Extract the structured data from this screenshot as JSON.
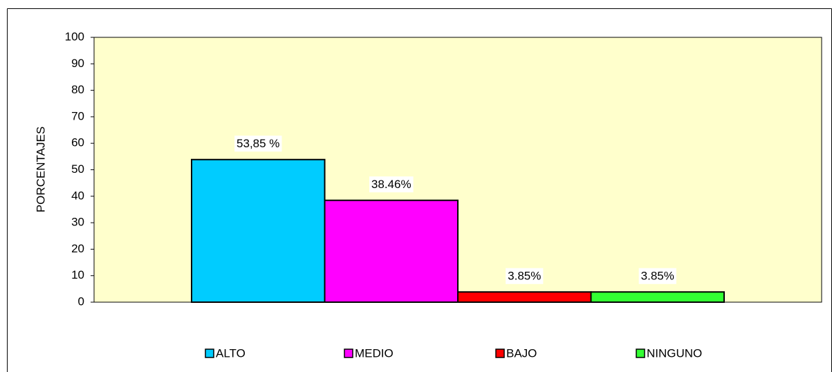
{
  "chart_data": {
    "type": "bar",
    "y_label": "PORCENTAJES",
    "series": [
      {
        "name": "ALTO",
        "color": "#00ccff",
        "values": [
          53.85
        ],
        "value_labels": [
          "53,85 %"
        ]
      },
      {
        "name": "MEDIO",
        "color": "#ff00ff",
        "values": [
          38.46
        ],
        "value_labels": [
          "38.46%"
        ]
      },
      {
        "name": "BAJO",
        "color": "#ff0000",
        "values": [
          3.85
        ],
        "value_labels": [
          "3.85%"
        ]
      },
      {
        "name": "NINGUNO",
        "color": "#33ff33",
        "values": [
          3.85
        ],
        "value_labels": [
          "3.85%"
        ]
      }
    ],
    "ylim": [
      0,
      100
    ],
    "yticks": [
      0,
      10,
      20,
      30,
      40,
      50,
      60,
      70,
      80,
      90,
      100
    ],
    "plot_background": "#ffffcc"
  }
}
